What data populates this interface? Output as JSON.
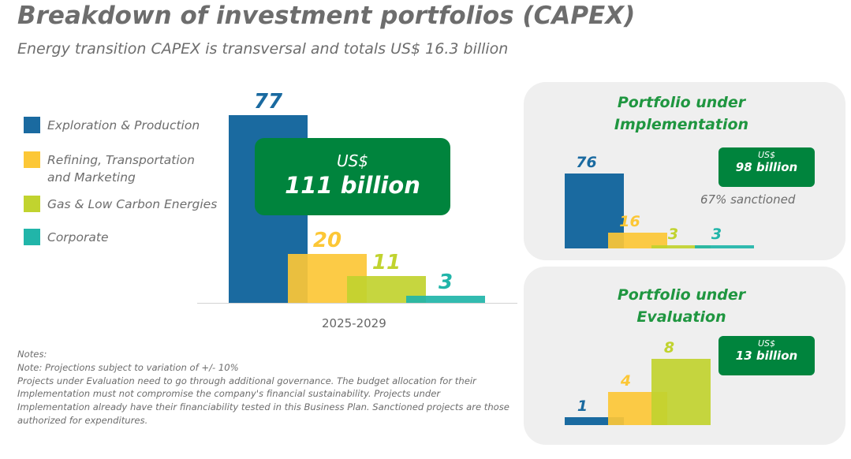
{
  "title": "Breakdown of investment portfolios (CAPEX)",
  "subtitle": "Energy transition CAPEX is transversal and totals US$ 16.3 billion",
  "colors": {
    "exploration": "#1a6aa0",
    "refining": "#fcc736",
    "gas": "#c1d32f",
    "corporate": "#21b5a9",
    "green": "#00843d",
    "panel": "#efefef"
  },
  "legend": [
    {
      "label": "Exploration & Production"
    },
    {
      "label": "Refining, Transportation and Marketing"
    },
    {
      "label": "Gas & Low Carbon Energies"
    },
    {
      "label": "Corporate"
    }
  ],
  "main_total": {
    "prefix": "US$",
    "value": "111 billion"
  },
  "notes": {
    "heading": "Notes:",
    "line1": "Note: Projections subject to variation of +/- 10%",
    "line2": "Projects under Evaluation need to go through additional governance. The budget allocation for their Implementation must not compromise the company's financial sustainability. Projects under Implementation already have their financiability tested in this Business Plan. Sanctioned projects are those authorized for expenditures."
  },
  "implementation": {
    "title": "Portfolio under Implementation",
    "badge_prefix": "US$",
    "badge_value": "98 billion",
    "sanctioned": "67% sanctioned"
  },
  "evaluation": {
    "title": "Portfolio under Evaluation",
    "badge_prefix": "US$",
    "badge_value": "13 billion"
  },
  "chart_data": [
    {
      "type": "bar",
      "title": "Breakdown of investment portfolios (CAPEX)",
      "categories": [
        "Exploration & Production",
        "Refining, Transportation and Marketing",
        "Gas & Low Carbon Energies",
        "Corporate"
      ],
      "values": [
        77,
        20,
        11,
        3
      ],
      "xlabel": "2025-2029",
      "ylabel": "",
      "total_label": "US$ 111 billion"
    },
    {
      "type": "bar",
      "title": "Portfolio under Implementation",
      "categories": [
        "Exploration & Production",
        "Refining, Transportation and Marketing",
        "Gas & Low Carbon Energies",
        "Corporate"
      ],
      "values": [
        76,
        16,
        3,
        3
      ],
      "total_label": "US$ 98 billion",
      "annotation": "67% sanctioned"
    },
    {
      "type": "bar",
      "title": "Portfolio under Evaluation",
      "categories": [
        "Exploration & Production",
        "Refining, Transportation and Marketing",
        "Gas & Low Carbon Energies"
      ],
      "values": [
        1,
        4,
        8
      ],
      "total_label": "US$ 13 billion"
    }
  ]
}
